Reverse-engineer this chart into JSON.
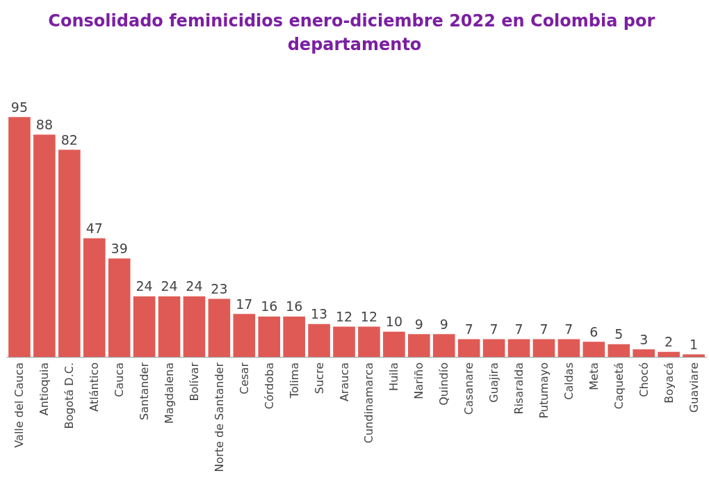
{
  "chart_data": {
    "type": "bar",
    "title": "Consolidado feminicidios enero-diciembre 2022 en Colombia por departamento",
    "categories": [
      "Valle del Cauca",
      "Antioquia",
      "Bogotá D.C.",
      "Atlántico",
      "Cauca",
      "Santander",
      "Magdalena",
      "Bolívar",
      "Norte de Santander",
      "Cesar",
      "Córdoba",
      "Tolima",
      "Sucre",
      "Arauca",
      "Cundinamarca",
      "Huila",
      "Nariño",
      "Quindío",
      "Casanare",
      "Guajira",
      "Risaralda",
      "Putumayo",
      "Caldas",
      "Meta",
      "Caquetá",
      "Chocó",
      "Boyacá",
      "Guaviare"
    ],
    "values": [
      95,
      88,
      82,
      47,
      39,
      24,
      24,
      24,
      23,
      17,
      16,
      16,
      13,
      12,
      12,
      10,
      9,
      9,
      7,
      7,
      7,
      7,
      7,
      6,
      5,
      3,
      2,
      1
    ],
    "color": "#e05a55",
    "data_labels": true,
    "grid": false
  }
}
